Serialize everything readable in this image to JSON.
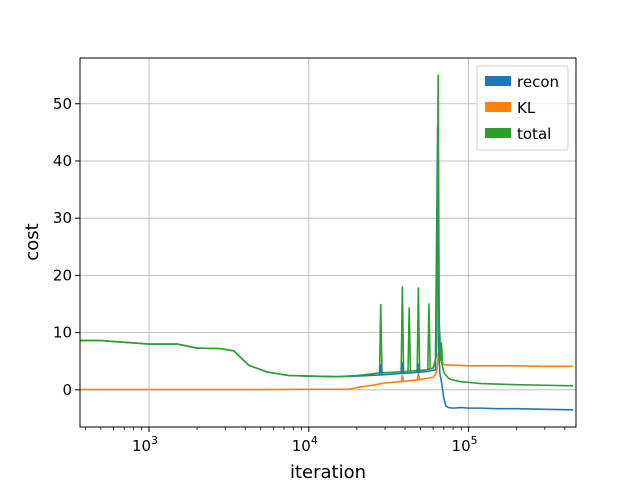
{
  "chart_data": {
    "type": "line",
    "title": "",
    "xlabel": "iteration",
    "ylabel": "cost",
    "x_scale": "log",
    "xlim": [
      370,
      470000
    ],
    "ylim": [
      -6.5,
      58
    ],
    "grid": true,
    "legend_position": "top-right",
    "x_ticks": [
      {
        "value": 1000,
        "base": "10",
        "exp": "3"
      },
      {
        "value": 10000,
        "base": "10",
        "exp": "4"
      },
      {
        "value": 100000,
        "base": "10",
        "exp": "5"
      }
    ],
    "y_ticks": [
      {
        "value": 0,
        "label": "0"
      },
      {
        "value": 10,
        "label": "10"
      },
      {
        "value": 20,
        "label": "20"
      },
      {
        "value": 30,
        "label": "30"
      },
      {
        "value": 40,
        "label": "40"
      },
      {
        "value": 50,
        "label": "50"
      }
    ],
    "series": [
      {
        "name": "recon",
        "color": "#1f77b4",
        "x": [
          370,
          500,
          1000,
          1500,
          2000,
          2800,
          3400,
          4200,
          5500,
          7500,
          10000,
          15000,
          20000,
          28000,
          35000,
          45000,
          55000,
          62000,
          64000,
          65000,
          66000,
          68000,
          70000,
          72000,
          75000,
          80000,
          90000,
          100000,
          120000,
          150000,
          200000,
          300000,
          450000
        ],
        "y": [
          8.6,
          8.6,
          8.0,
          8.0,
          7.3,
          7.2,
          6.8,
          4.3,
          3.1,
          2.5,
          2.4,
          2.3,
          2.4,
          2.6,
          2.8,
          3.0,
          3.2,
          3.5,
          46,
          8,
          3.0,
          1.0,
          -1.5,
          -2.8,
          -3.1,
          -3.2,
          -3.1,
          -3.2,
          -3.2,
          -3.3,
          -3.3,
          -3.4,
          -3.5
        ]
      },
      {
        "name": "KL",
        "color": "#ff7f0e",
        "x": [
          370,
          1000,
          5000,
          10000,
          15000,
          18000,
          20000,
          25000,
          30000,
          40000,
          50000,
          60000,
          63000,
          65000,
          66000,
          68000,
          70000,
          80000,
          100000,
          150000,
          200000,
          300000,
          450000
        ],
        "y": [
          0.05,
          0.05,
          0.05,
          0.1,
          0.1,
          0.1,
          0.4,
          0.8,
          1.2,
          1.5,
          1.8,
          2.2,
          3.0,
          6.5,
          7.0,
          5.0,
          4.4,
          4.3,
          4.2,
          4.2,
          4.2,
          4.1,
          4.1
        ]
      },
      {
        "name": "total",
        "color": "#2ca02c",
        "x": [
          370,
          500,
          1000,
          1500,
          2000,
          2800,
          3400,
          4200,
          5500,
          7500,
          10000,
          15000,
          20000,
          25000,
          28000,
          30000,
          35000,
          40000,
          45000,
          50000,
          55000,
          60000,
          63000,
          64500,
          65500,
          67000,
          70000,
          75000,
          80000,
          90000,
          100000,
          120000,
          150000,
          200000,
          300000,
          450000
        ],
        "y": [
          8.6,
          8.6,
          8.0,
          8.0,
          7.3,
          7.2,
          6.8,
          4.3,
          3.1,
          2.5,
          2.4,
          2.3,
          2.5,
          2.8,
          3.0,
          3.0,
          3.1,
          3.2,
          3.3,
          3.4,
          3.5,
          3.8,
          6.0,
          55,
          12,
          5.5,
          3.0,
          2.0,
          1.7,
          1.4,
          1.3,
          1.1,
          1.0,
          0.9,
          0.8,
          0.7
        ]
      }
    ],
    "spikes": [
      {
        "series": "total",
        "x": 28200,
        "y": 15.0
      },
      {
        "series": "total",
        "x": 38500,
        "y": 18.1
      },
      {
        "series": "total",
        "x": 42500,
        "y": 14.4
      },
      {
        "series": "total",
        "x": 48500,
        "y": 17.9
      },
      {
        "series": "total",
        "x": 56500,
        "y": 15.1
      },
      {
        "series": "total",
        "x": 67500,
        "y": 8.3
      },
      {
        "series": "recon",
        "x": 28200,
        "y": 4.5
      },
      {
        "series": "recon",
        "x": 38500,
        "y": 4.8
      },
      {
        "series": "recon",
        "x": 48500,
        "y": 4.6
      },
      {
        "series": "KL",
        "x": 38500,
        "y": 2.6
      },
      {
        "series": "KL",
        "x": 48500,
        "y": 2.9
      }
    ]
  }
}
